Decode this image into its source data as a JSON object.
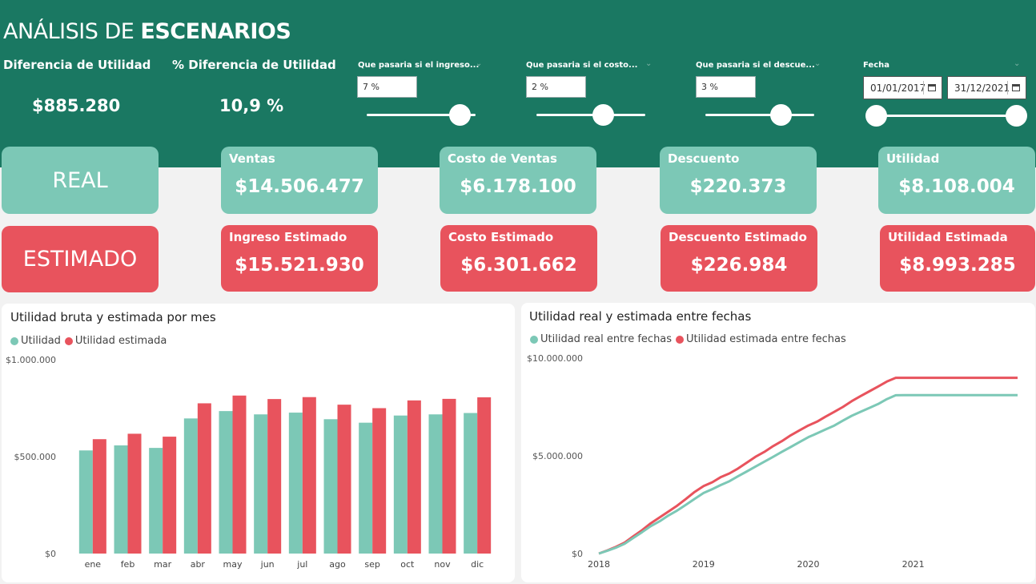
{
  "header": {
    "title_prefix": "ANÁLISIS DE ",
    "title_bold": "ESCENARIOS",
    "kpis": [
      {
        "label": "Diferencia de Utilidad",
        "value": "$885.280"
      },
      {
        "label": "% Diferencia de Utilidad",
        "value": "10,9 %"
      }
    ]
  },
  "slicers": [
    {
      "label": "Que pasaria si el ingreso...",
      "value": "7 %",
      "level": 0.85
    },
    {
      "label": "Que pasaria si el costo...",
      "value": "2 %",
      "level": 0.6
    },
    {
      "label": "Que pasaria si el descue...",
      "value": "3 %",
      "level": 0.7
    }
  ],
  "date_slicer": {
    "label": "Fecha",
    "start": "01/01/2017",
    "end": "31/12/2021",
    "calendar_icon": "calendar-icon"
  },
  "row_labels": {
    "real": "REAL",
    "estimado": "ESTIMADO"
  },
  "cards_real": [
    {
      "label": "Ventas",
      "value": "$14.506.477"
    },
    {
      "label": "Costo de Ventas",
      "value": "$6.178.100"
    },
    {
      "label": "Descuento",
      "value": "$220.373"
    },
    {
      "label": "Utilidad",
      "value": "$8.108.004"
    }
  ],
  "cards_estimado": [
    {
      "label": "Ingreso Estimado",
      "value": "$15.521.930"
    },
    {
      "label": "Costo Estimado",
      "value": "$6.301.662"
    },
    {
      "label": "Descuento Estimado",
      "value": "$226.984"
    },
    {
      "label": "Utilidad Estimada",
      "value": "$8.993.285"
    }
  ],
  "colors": {
    "banner": "#1a7862",
    "teal": "#7cc8b6",
    "red": "#e8535d"
  },
  "chart_data": [
    {
      "type": "bar",
      "title": "Utilidad bruta y estimada por mes",
      "categories": [
        "ene",
        "feb",
        "mar",
        "abr",
        "may",
        "jun",
        "jul",
        "ago",
        "sep",
        "oct",
        "nov",
        "dic"
      ],
      "series": [
        {
          "name": "Utilidad",
          "color": "#7cc8b6",
          "values": [
            532000,
            558000,
            545000,
            697000,
            735000,
            718000,
            727000,
            693000,
            675000,
            712000,
            718000,
            725000
          ]
        },
        {
          "name": "Utilidad estimada",
          "color": "#e8535d",
          "values": [
            590000,
            618000,
            603000,
            775000,
            815000,
            797000,
            807000,
            768000,
            750000,
            790000,
            798000,
            806000
          ]
        }
      ],
      "ytick_labels": [
        "$0",
        "$500.000",
        "$1.000.000"
      ],
      "yticks": [
        0,
        500000,
        1000000
      ],
      "ylim": [
        0,
        1000000
      ],
      "legend": "top-left",
      "grid": false
    },
    {
      "type": "line",
      "title": "Utilidad real y estimada entre fechas",
      "x": [
        "2018-01-01",
        "2018-02-01",
        "2018-03-01",
        "2018-04-01",
        "2018-05-01",
        "2018-06-01",
        "2018-07-01",
        "2018-08-01",
        "2018-09-01",
        "2018-10-01",
        "2018-11-01",
        "2018-12-01",
        "2019-01-01",
        "2019-02-01",
        "2019-03-01",
        "2019-04-01",
        "2019-05-01",
        "2019-06-01",
        "2019-07-01",
        "2019-08-01",
        "2019-09-01",
        "2019-10-01",
        "2019-11-01",
        "2019-12-01",
        "2020-01-01",
        "2020-02-01",
        "2020-03-01",
        "2020-04-01",
        "2020-05-01",
        "2020-06-01",
        "2020-07-01",
        "2020-08-01",
        "2020-09-01",
        "2020-10-01",
        "2020-11-01",
        "2020-12-01",
        "2021-01-01",
        "2021-12-31"
      ],
      "series": [
        {
          "name": "Utilidad real entre fechas",
          "color": "#7cc8b6",
          "values": [
            0,
            150000,
            300000,
            500000,
            800000,
            1100000,
            1400000,
            1650000,
            1950000,
            2200000,
            2500000,
            2800000,
            3100000,
            3300000,
            3500000,
            3700000,
            3950000,
            4200000,
            4450000,
            4700000,
            4950000,
            5200000,
            5450000,
            5700000,
            5950000,
            6150000,
            6350000,
            6550000,
            6800000,
            7050000,
            7250000,
            7450000,
            7650000,
            7900000,
            8100000,
            8108004,
            8108004,
            8108004
          ]
        },
        {
          "name": "Utilidad estimada entre fechas",
          "color": "#e8535d",
          "values": [
            0,
            170000,
            340000,
            560000,
            880000,
            1200000,
            1550000,
            1850000,
            2150000,
            2450000,
            2800000,
            3150000,
            3450000,
            3650000,
            3900000,
            4100000,
            4350000,
            4650000,
            4950000,
            5200000,
            5500000,
            5750000,
            6050000,
            6300000,
            6550000,
            6750000,
            7000000,
            7250000,
            7500000,
            7800000,
            8050000,
            8300000,
            8550000,
            8800000,
            8990000,
            8993285,
            8993285,
            8993285
          ]
        }
      ],
      "xtick_labels": [
        "2018",
        "2019",
        "2020",
        "2021"
      ],
      "ytick_labels": [
        "$0",
        "$5.000.000",
        "$10.000.000"
      ],
      "yticks": [
        0,
        5000000,
        10000000
      ],
      "ylim": [
        0,
        10000000
      ],
      "xlim": [
        "2018-01-01",
        "2021-12-31"
      ],
      "legend": "top-left",
      "grid": false
    }
  ]
}
